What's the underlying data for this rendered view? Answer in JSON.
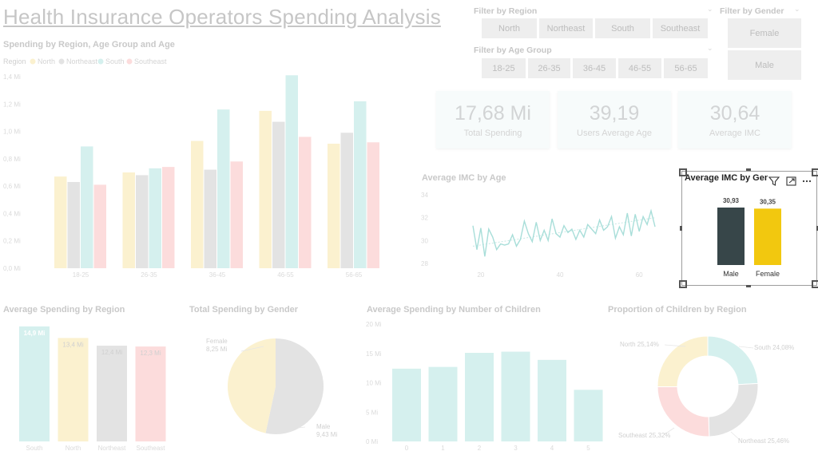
{
  "page_title": "Health Insurance Operators Spending Analysis",
  "slicers": {
    "region": {
      "title": "Filter by Region",
      "chevron": "⌄",
      "options": [
        "North",
        "Northeast",
        "South",
        "Southeast"
      ]
    },
    "age_group": {
      "title": "Filter by Age Group",
      "chevron": "⌄",
      "options": [
        "18-25",
        "26-35",
        "36-45",
        "46-55",
        "56-65"
      ]
    },
    "gender": {
      "title": "Filter by Gender",
      "chevron": "⌄",
      "options": [
        "Female",
        "Male"
      ]
    }
  },
  "kpis": [
    {
      "value": "17,68 Mi",
      "label": "Total Spending"
    },
    {
      "value": "39,19",
      "label": "Users Average Age"
    },
    {
      "value": "30,64",
      "label": "Average IMC"
    }
  ],
  "colors": {
    "north": "#fbf1cf",
    "northeast": "#e3e3e3",
    "south": "#d5f0ee",
    "southeast": "#fcdcdc",
    "male_bar": "#374649",
    "female_bar": "#f2c80f",
    "accent_line": "#a8ded9"
  },
  "chart_data": [
    {
      "id": "spending_by_region_age",
      "type": "bar",
      "title": "Spending by Region, Age Group and Age",
      "legend_title": "Region",
      "categories": [
        "18-25",
        "26-35",
        "36-45",
        "46-55",
        "56-65"
      ],
      "series": [
        {
          "name": "North",
          "values": [
            0.67,
            0.7,
            0.93,
            1.15,
            0.91
          ]
        },
        {
          "name": "Northeast",
          "values": [
            0.63,
            0.68,
            0.72,
            1.07,
            0.99
          ]
        },
        {
          "name": "South",
          "values": [
            0.89,
            0.73,
            1.16,
            1.41,
            1.22
          ]
        },
        {
          "name": "Southeast",
          "values": [
            0.61,
            0.74,
            0.78,
            0.96,
            0.92
          ]
        }
      ],
      "y_ticks": [
        "0,0 Mi",
        "0,2 Mi",
        "0,4 Mi",
        "0,6 Mi",
        "0,8 Mi",
        "1,0 Mi",
        "1,2 Mi",
        "1,4 Mi"
      ],
      "ylim": [
        0,
        1.4
      ]
    },
    {
      "id": "avg_imc_by_age",
      "type": "line",
      "title": "Average IMC by Age",
      "x_ticks": [
        "20",
        "40",
        "60"
      ],
      "y_ticks": [
        "28",
        "30",
        "32",
        "34"
      ],
      "xlim": [
        18,
        64
      ],
      "ylim": [
        27.5,
        34.5
      ],
      "x": [
        18,
        19,
        20,
        21,
        22,
        23,
        24,
        25,
        26,
        27,
        28,
        29,
        30,
        31,
        32,
        33,
        34,
        35,
        36,
        37,
        38,
        39,
        40,
        41,
        42,
        43,
        44,
        45,
        46,
        47,
        48,
        49,
        50,
        51,
        52,
        53,
        54,
        55,
        56,
        57,
        58,
        59,
        60,
        61,
        62,
        63,
        64
      ],
      "y": [
        31.3,
        29.2,
        31.1,
        28.6,
        31.0,
        30.3,
        29.2,
        29.7,
        29.6,
        29.7,
        30.5,
        29.5,
        30.1,
        31.7,
        30.6,
        29.9,
        31.6,
        30.0,
        30.9,
        30.0,
        31.9,
        30.6,
        30.3,
        31.3,
        30.7,
        31.0,
        30.1,
        30.9,
        30.3,
        31.4,
        31.0,
        30.6,
        31.8,
        30.9,
        31.2,
        32.1,
        30.2,
        31.2,
        30.5,
        32.4,
        30.4,
        32.3,
        30.8,
        32.1,
        31.4,
        32.6,
        31.2
      ],
      "trend": [
        29.5,
        32.0
      ]
    },
    {
      "id": "avg_imc_by_gender",
      "type": "bar",
      "title": "Average IMC by Gen",
      "categories": [
        "Male",
        "Female"
      ],
      "values": [
        30.93,
        30.35
      ],
      "data_labels": [
        "30,93",
        "30,35"
      ]
    },
    {
      "id": "avg_spending_by_region",
      "type": "bar",
      "title": "Average Spending by Region",
      "categories": [
        "South",
        "North",
        "Northeast",
        "Southeast"
      ],
      "values": [
        14.9,
        13.4,
        12.4,
        12.3
      ],
      "data_labels": [
        "14,9 Mi",
        "13,4 Mi",
        "12,4 Mi",
        "12,3 Mi"
      ],
      "ylim": [
        0,
        15.2
      ]
    },
    {
      "id": "total_spending_by_gender",
      "type": "pie",
      "title": "Total Spending by Gender",
      "slices": [
        {
          "name": "Female",
          "value": 8.25,
          "label_name": "Female",
          "label_value": "8,25 Mi"
        },
        {
          "name": "Male",
          "value": 9.43,
          "label_name": "Male",
          "label_value": "9,43 Mi"
        }
      ]
    },
    {
      "id": "avg_spending_by_children",
      "type": "bar",
      "title": "Average Spending by Number of Children",
      "categories": [
        "0",
        "1",
        "2",
        "3",
        "4",
        "5"
      ],
      "values": [
        12.4,
        12.7,
        15.1,
        15.3,
        13.9,
        8.8
      ],
      "y_ticks": [
        "0 Mi",
        "5 Mi",
        "10 Mi",
        "15 Mi",
        "20 Mi"
      ],
      "ylim": [
        0,
        20
      ]
    },
    {
      "id": "children_by_region",
      "type": "pie",
      "title": "Proportion of Children by Region",
      "donut": true,
      "slices": [
        {
          "name": "South",
          "value": 24.08,
          "label": "South 24,08%"
        },
        {
          "name": "Northeast",
          "value": 25.46,
          "label": "Northeast 25,46%"
        },
        {
          "name": "Southeast",
          "value": 25.32,
          "label": "Southeast 25,32%"
        },
        {
          "name": "North",
          "value": 25.14,
          "label": "North 25,14%"
        }
      ]
    }
  ],
  "icons": {
    "filter": "filter-icon",
    "focus": "focus-mode-icon",
    "more": "more-options-icon"
  }
}
